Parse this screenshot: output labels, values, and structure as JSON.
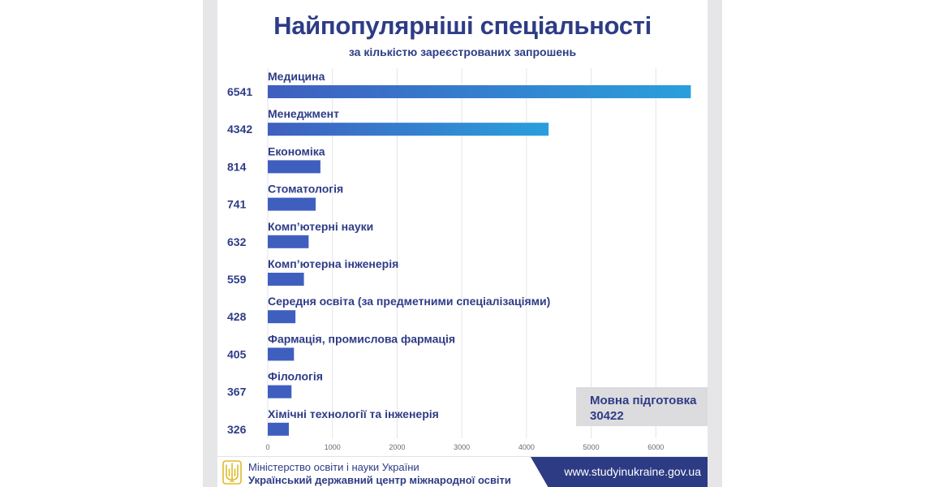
{
  "chart_data": {
    "type": "bar",
    "orientation": "horizontal",
    "title": "Найпопулярніші спеціальності",
    "subtitle": "за кількістю зареєстрованих запрошень",
    "categories": [
      "Медицина",
      "Менеджмент",
      "Економіка",
      "Стоматологія",
      "Комп’ютерні науки",
      "Комп’ютерна інженерія",
      "Середня освіта (за предметними спеціалізаціями)",
      "Фармація, промислова фармація",
      "Філологія",
      "Хімічні технології та інженерія"
    ],
    "values": [
      6541,
      4342,
      814,
      741,
      632,
      559,
      428,
      405,
      367,
      326
    ],
    "value_labels": [
      "6541",
      "4342",
      "814",
      "741",
      "632",
      "559",
      "428",
      "405",
      "367",
      "326"
    ],
    "x_ticks": [
      0,
      1000,
      2000,
      3000,
      4000,
      5000,
      6000
    ],
    "x_tick_labels": [
      "0",
      "1000",
      "2000",
      "3000",
      "4000",
      "5000",
      "6000"
    ],
    "xlim": [
      0,
      7000
    ],
    "xlabel": "",
    "ylabel": "",
    "grid": "vertical",
    "bar_color": "#3f5fbf",
    "bar_gradient_end": "#2a9fdc",
    "annotation": {
      "label": "Мовна підготовка",
      "value": "30422"
    }
  },
  "footer": {
    "ministry": "Міністерство освіти і науки України",
    "center": "Український державний центр міжнародної освіти",
    "url": "www.studyinukraine.gov.ua"
  },
  "colors": {
    "title": "#2e3c86",
    "footer_band": "#2d3b84",
    "annotation_box": "#dcdcde"
  },
  "icons": {
    "emblem": "trident-icon"
  }
}
